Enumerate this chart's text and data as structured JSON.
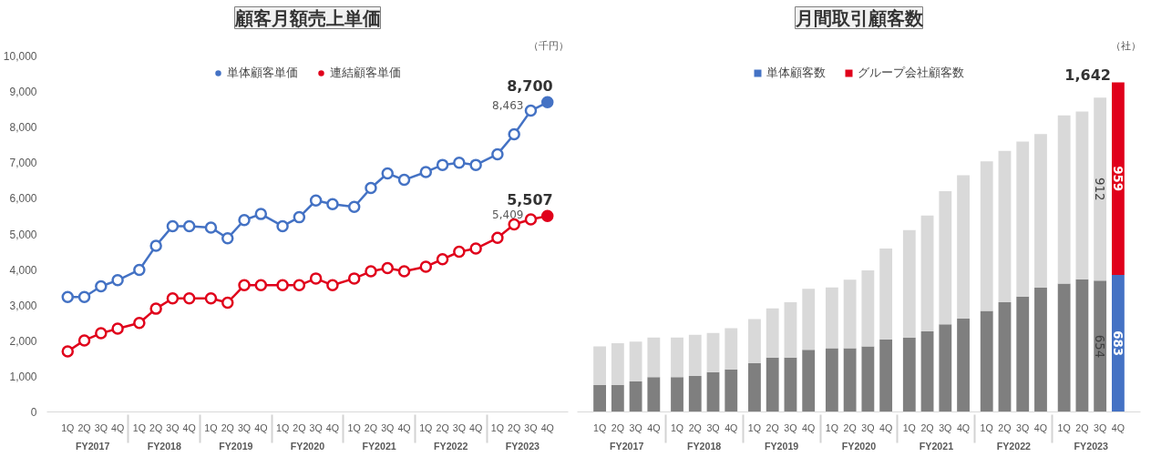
{
  "chart_data": [
    {
      "type": "line",
      "title": "顧客月額売上単価",
      "categories": [
        "1Q",
        "2Q",
        "3Q",
        "4Q",
        "1Q",
        "2Q",
        "3Q",
        "4Q",
        "1Q",
        "2Q",
        "3Q",
        "4Q",
        "1Q",
        "2Q",
        "3Q",
        "4Q",
        "1Q",
        "2Q",
        "3Q",
        "4Q",
        "1Q",
        "2Q",
        "3Q",
        "4Q",
        "1Q",
        "2Q",
        "3Q",
        "4Q"
      ],
      "series": [
        {
          "name": "単体顧客単価",
          "color": "#4472c4",
          "values": [
            3230,
            3230,
            3530,
            3700,
            3990,
            4670,
            5220,
            5220,
            5180,
            4880,
            5390,
            5560,
            5220,
            5470,
            5940,
            5840,
            5760,
            6290,
            6700,
            6520,
            6740,
            6940,
            7000,
            6940,
            7240,
            7800,
            8463,
            8700
          ],
          "value_labels": [
            null,
            null,
            null,
            null,
            null,
            null,
            null,
            null,
            null,
            null,
            null,
            null,
            null,
            null,
            null,
            null,
            null,
            null,
            null,
            null,
            null,
            null,
            null,
            null,
            null,
            null,
            "8,463",
            "8,700"
          ]
        },
        {
          "name": "連結顧客単価",
          "color": "#e0001b",
          "values": [
            1700,
            2010,
            2210,
            2340,
            2500,
            2900,
            3190,
            3190,
            3190,
            3070,
            3560,
            3560,
            3560,
            3560,
            3750,
            3560,
            3750,
            3950,
            4040,
            3950,
            4080,
            4290,
            4500,
            4590,
            4890,
            5270,
            5409,
            5507
          ],
          "value_labels": [
            null,
            null,
            null,
            null,
            null,
            null,
            null,
            null,
            null,
            null,
            null,
            null,
            null,
            null,
            null,
            null,
            null,
            null,
            null,
            null,
            null,
            null,
            null,
            null,
            null,
            null,
            "5,409",
            "5,507"
          ]
        }
      ],
      "ylim": [
        0,
        10000
      ],
      "yticks": [
        0,
        {
          "value": 1000,
          "label": "1,000"
        },
        {
          "value": 2000,
          "label": "2,000"
        },
        {
          "value": 3000,
          "label": "3,000"
        },
        {
          "value": 4000,
          "label": "4,000"
        },
        {
          "value": 5000,
          "label": "5,000"
        },
        {
          "value": 6000,
          "label": "6,000"
        },
        {
          "value": 7000,
          "label": "7,000"
        },
        {
          "value": 8000,
          "label": "8,000"
        },
        {
          "value": 9000,
          "label": "9,000"
        },
        {
          "value": 10000,
          "label": "10,000"
        }
      ],
      "marker": "circle",
      "legend": "top",
      "annotations": [
        "（千円）",
        "FY2017",
        "FY2018",
        "FY2019",
        "FY2020",
        "FY2021",
        "FY2022",
        "FY2023"
      ]
    },
    {
      "type": "bar",
      "stacked": true,
      "title": "月間取引顧客数",
      "categories": [
        "1Q",
        "2Q",
        "3Q",
        "4Q",
        "1Q",
        "2Q",
        "3Q",
        "4Q",
        "1Q",
        "2Q",
        "3Q",
        "4Q",
        "1Q",
        "2Q",
        "3Q",
        "4Q",
        "1Q",
        "2Q",
        "3Q",
        "4Q",
        "1Q",
        "2Q",
        "3Q",
        "4Q",
        "1Q",
        "2Q",
        "3Q",
        "4Q"
      ],
      "series": [
        {
          "name": "単体顧客数",
          "color": "#4472c4",
          "colors": [
            "#7f7f7f",
            "#7f7f7f",
            "#7f7f7f",
            "#7f7f7f",
            "#7f7f7f",
            "#7f7f7f",
            "#7f7f7f",
            "#7f7f7f",
            "#7f7f7f",
            "#7f7f7f",
            "#7f7f7f",
            "#7f7f7f",
            "#7f7f7f",
            "#7f7f7f",
            "#7f7f7f",
            "#7f7f7f",
            "#7f7f7f",
            "#7f7f7f",
            "#7f7f7f",
            "#7f7f7f",
            "#7f7f7f",
            "#7f7f7f",
            "#7f7f7f",
            "#7f7f7f",
            "#7f7f7f",
            "#7f7f7f",
            "#7f7f7f",
            "#4472c4"
          ],
          "values": [
            134,
            134,
            152,
            174,
            174,
            179,
            198,
            212,
            243,
            271,
            271,
            309,
            317,
            317,
            326,
            362,
            371,
            401,
            437,
            465,
            503,
            547,
            575,
            620,
            639,
            661,
            654,
            683
          ],
          "value_labels": [
            null,
            null,
            null,
            null,
            null,
            null,
            null,
            null,
            null,
            null,
            null,
            null,
            null,
            null,
            null,
            null,
            null,
            null,
            null,
            null,
            null,
            null,
            null,
            null,
            null,
            null,
            "654",
            "683"
          ]
        },
        {
          "name": "グループ会社顧客数",
          "color": "#e0001b",
          "colors": [
            "#d9d9d9",
            "#d9d9d9",
            "#d9d9d9",
            "#d9d9d9",
            "#d9d9d9",
            "#d9d9d9",
            "#d9d9d9",
            "#d9d9d9",
            "#d9d9d9",
            "#d9d9d9",
            "#d9d9d9",
            "#d9d9d9",
            "#d9d9d9",
            "#d9d9d9",
            "#d9d9d9",
            "#d9d9d9",
            "#d9d9d9",
            "#d9d9d9",
            "#d9d9d9",
            "#d9d9d9",
            "#d9d9d9",
            "#d9d9d9",
            "#d9d9d9",
            "#d9d9d9",
            "#d9d9d9",
            "#d9d9d9",
            "#d9d9d9",
            "#e0001b"
          ],
          "values": [
            192,
            208,
            198,
            197,
            197,
            205,
            195,
            205,
            220,
            245,
            276,
            304,
            303,
            342,
            379,
            452,
            535,
            578,
            663,
            714,
            745,
            754,
            772,
            765,
            838,
            836,
            912,
            959
          ],
          "value_labels": [
            null,
            null,
            null,
            null,
            null,
            null,
            null,
            null,
            null,
            null,
            null,
            null,
            null,
            null,
            null,
            null,
            null,
            null,
            null,
            null,
            null,
            null,
            null,
            null,
            null,
            null,
            "912",
            "959"
          ]
        }
      ],
      "totals": [
        null,
        null,
        null,
        null,
        null,
        null,
        null,
        null,
        null,
        null,
        null,
        null,
        null,
        null,
        null,
        null,
        null,
        null,
        null,
        null,
        null,
        null,
        null,
        null,
        null,
        null,
        null,
        "1,642"
      ],
      "legend": "top",
      "annotations": [
        "（社）",
        "FY2017",
        "FY2018",
        "FY2019",
        "FY2020",
        "FY2021",
        "FY2022",
        "FY2023"
      ]
    }
  ]
}
